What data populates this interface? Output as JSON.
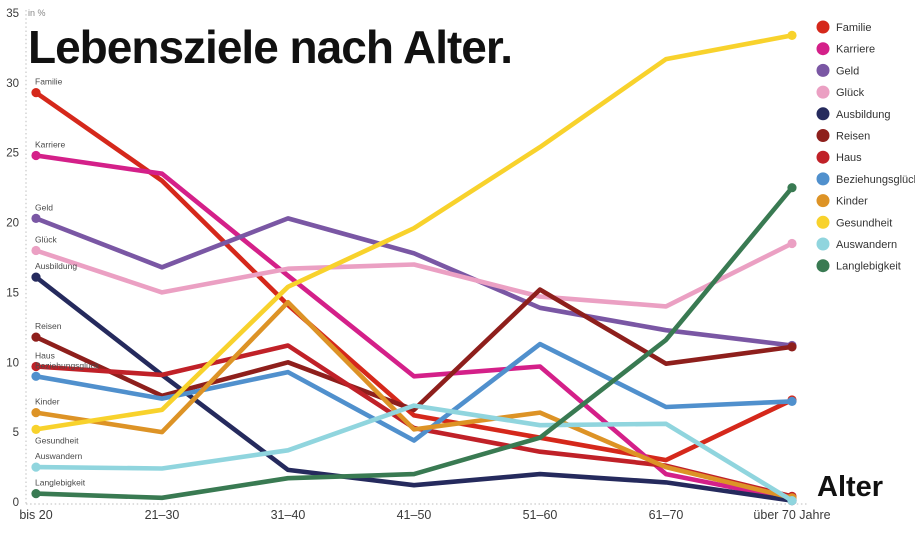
{
  "title": "Lebensziele nach Alter.",
  "unit_label": "in %",
  "xlabel": "Alter",
  "axis": {
    "y_ticks": [
      0,
      5,
      10,
      15,
      20,
      25,
      30,
      35
    ],
    "tick_color": "#3a3a3a",
    "grid_color": "#c9c9c9"
  },
  "legend": {
    "items": [
      "Familie",
      "Karriere",
      "Geld",
      "Glück",
      "Ausbildung",
      "Reisen",
      "Haus",
      "Beziehungsglück",
      "Kinder",
      "Gesundheit",
      "Auswandern",
      "Langlebigkeit"
    ]
  },
  "chart_data": {
    "type": "line",
    "title": "Lebensziele nach Alter.",
    "ylabel": "in %",
    "xlabel": "Alter",
    "ylim": [
      0,
      35
    ],
    "grid": false,
    "legend_position": "right",
    "categories": [
      "bis 20",
      "21–30",
      "31–40",
      "41–50",
      "51–60",
      "61–70",
      "über 70 Jahre"
    ],
    "series": [
      {
        "name": "Familie",
        "color": "#d5281b",
        "values": [
          29.3,
          23.0,
          14.1,
          6.2,
          4.6,
          3.0,
          7.3
        ]
      },
      {
        "name": "Karriere",
        "color": "#d42089",
        "values": [
          24.8,
          23.5,
          16.2,
          9.0,
          9.7,
          2.0,
          0.2
        ]
      },
      {
        "name": "Geld",
        "color": "#7a57a4",
        "values": [
          20.3,
          16.8,
          20.3,
          17.8,
          13.9,
          12.3,
          11.2
        ]
      },
      {
        "name": "Glück",
        "color": "#eba0c3",
        "values": [
          18.0,
          15.0,
          16.7,
          17.0,
          14.7,
          14.0,
          18.5
        ]
      },
      {
        "name": "Ausbildung",
        "color": "#252a5d",
        "values": [
          16.1,
          9.1,
          2.3,
          1.2,
          2.0,
          1.4,
          0.1
        ]
      },
      {
        "name": "Reisen",
        "color": "#8e1f1c",
        "values": [
          11.8,
          7.6,
          10.0,
          6.6,
          15.2,
          9.9,
          11.1
        ]
      },
      {
        "name": "Haus",
        "color": "#c02128",
        "values": [
          9.7,
          9.1,
          11.2,
          5.3,
          3.6,
          2.6,
          0.4
        ]
      },
      {
        "name": "Beziehungsglück",
        "color": "#5090cd",
        "values": [
          9.0,
          7.4,
          9.3,
          4.4,
          11.3,
          6.8,
          7.2
        ]
      },
      {
        "name": "Kinder",
        "color": "#dd9326",
        "values": [
          6.4,
          5.0,
          14.3,
          5.2,
          6.4,
          2.5,
          0.3
        ]
      },
      {
        "name": "Gesundheit",
        "color": "#f8d22c",
        "values": [
          5.2,
          6.6,
          15.4,
          19.6,
          25.4,
          31.7,
          33.4
        ],
        "label_dy": 14
      },
      {
        "name": "Auswandern",
        "color": "#90d5de",
        "values": [
          2.5,
          2.4,
          3.7,
          6.9,
          5.5,
          5.6,
          0.1
        ]
      },
      {
        "name": "Langlebigkeit",
        "color": "#397a52",
        "values": [
          0.6,
          0.3,
          1.7,
          2.0,
          4.6,
          11.6,
          22.5
        ]
      }
    ]
  }
}
